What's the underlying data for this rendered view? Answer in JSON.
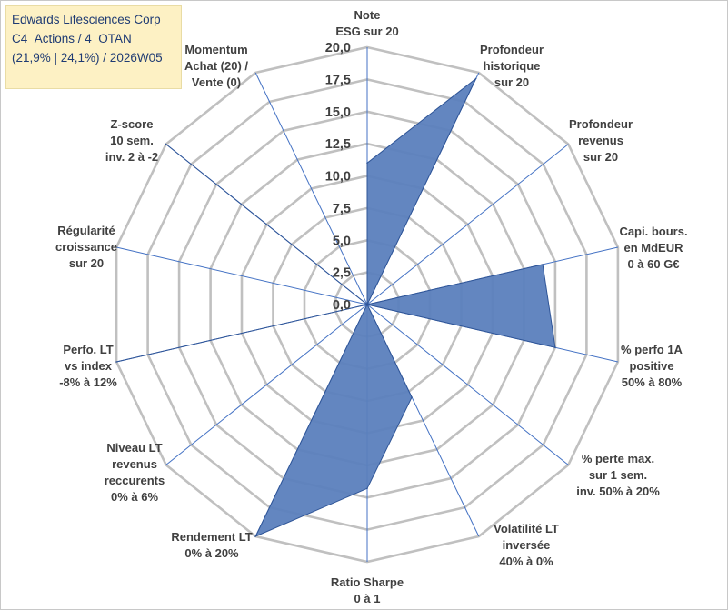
{
  "title_box": {
    "line1": "Edwards Lifesciences Corp",
    "line2": "C4_Actions / 4_OTAN",
    "line3": "(21,9% | 24,1%) / 2026W05"
  },
  "colors": {
    "series_fill": "#5b7fbd",
    "series_stroke": "#2f5597",
    "grid": "#c0c0c0",
    "spoke": "#4472c4",
    "title_bg": "#fdf1c4",
    "title_text": "#1f3b73"
  },
  "chart_data": {
    "type": "radar",
    "title": "Edwards Lifesciences Corp",
    "rmin": 0,
    "rmax": 20,
    "ticks": [
      0,
      2.5,
      5,
      7.5,
      10,
      12.5,
      15,
      17.5,
      20
    ],
    "tick_labels": [
      "0,0",
      "2,5",
      "5,0",
      "7,5",
      "10,0",
      "12,5",
      "15,0",
      "17,5",
      "20,0"
    ],
    "axes": [
      {
        "label": [
          "Note",
          "ESG sur 20"
        ],
        "value": 11
      },
      {
        "label": [
          "Profondeur",
          "historique",
          "sur 20"
        ],
        "value": 19.5
      },
      {
        "label": [
          "Profondeur",
          "revenus",
          "sur 20"
        ],
        "value": 0
      },
      {
        "label": [
          "Capi. bours.",
          "en MdEUR",
          "0 à 60 G€"
        ],
        "value": 14
      },
      {
        "label": [
          "% perfo 1A",
          "positive",
          "50% à 80%"
        ],
        "value": 15
      },
      {
        "label": [
          "% perte max.",
          "sur 1 sem.",
          "inv. 50% à 20%"
        ],
        "value": 0
      },
      {
        "label": [
          "Volatilité LT",
          "inversée",
          "40% à 0%"
        ],
        "value": 8
      },
      {
        "label": [
          "Ratio Sharpe",
          "0 à 1"
        ],
        "value": 14.3
      },
      {
        "label": [
          "Rendement LT",
          "0% à 20%"
        ],
        "value": 20
      },
      {
        "label": [
          "Niveau LT",
          "revenus",
          "reccurents",
          "0% à 6%"
        ],
        "value": 0
      },
      {
        "label": [
          "Perfo. LT",
          "vs index",
          "-8% à 12%"
        ],
        "value": 20
      },
      {
        "label": [
          "Régularité",
          "croissance",
          "sur 20"
        ],
        "value": 0
      },
      {
        "label": [
          "Z-score",
          "10 sem.",
          "inv. 2 à -2"
        ],
        "value": 20
      },
      {
        "label": [
          "Momentum",
          "Achat (20) /",
          "Vente (0)"
        ],
        "value": 0
      }
    ]
  }
}
